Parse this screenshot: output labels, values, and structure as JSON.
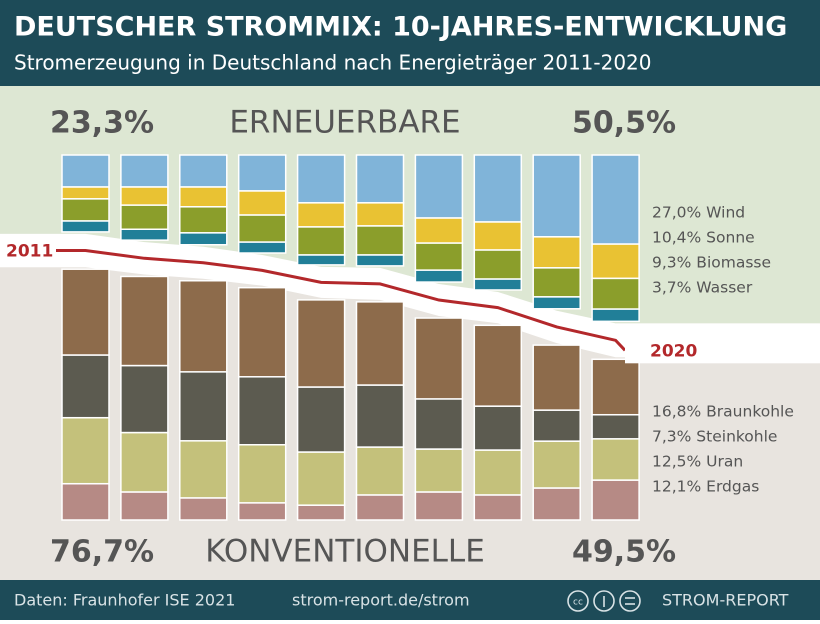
{
  "chart_data": {
    "type": "split_stack",
    "title": "DEUTSCHER STROMMIX: 10-JAHRES-ENTWICKLUNG",
    "subtitle": "Stromerzeugung in Deutschland nach Energieträger 2011-2020",
    "categories": [
      "2011",
      null,
      null,
      null,
      null,
      null,
      null,
      null,
      null,
      "2020"
    ],
    "groups": [
      {
        "name": "ERNEUERBARE",
        "values": [
          23.3,
          50.5
        ],
        "value_labels": [
          "23,3%",
          "50,5%"
        ]
      },
      {
        "name": "KONVENTIONELLE",
        "values": [
          76.7,
          49.5
        ],
        "value_labels": [
          "76,7%",
          "49,5%"
        ]
      }
    ],
    "series": [
      {
        "name": "27,0% Wind",
        "group": 0,
        "color": "#80b4d9",
        "values": [
          9.7,
          9.7,
          9.7,
          10.9,
          14.5,
          14.5,
          19.1,
          20.3,
          24.8,
          27.0
        ]
      },
      {
        "name": "10,4% Sonne",
        "group": 0,
        "color": "#e9c233",
        "values": [
          3.6,
          5.5,
          6.0,
          7.3,
          7.3,
          7.0,
          7.6,
          8.5,
          9.4,
          10.4
        ]
      },
      {
        "name": "9,3% Biomasse",
        "group": 0,
        "color": "#8b9e2b",
        "values": [
          6.7,
          7.3,
          7.9,
          8.2,
          8.5,
          8.8,
          8.2,
          8.8,
          8.8,
          9.3
        ]
      },
      {
        "name": "3,7% Wasser",
        "group": 0,
        "color": "#217f98",
        "values": [
          3.3,
          3.3,
          3.6,
          3.3,
          3.0,
          3.3,
          3.6,
          3.3,
          3.6,
          3.7
        ]
      },
      {
        "name": "16,8% Braunkohle",
        "group": 1,
        "color": "#8d6b4b",
        "values": [
          26.0,
          27.0,
          27.6,
          27.0,
          26.4,
          25.2,
          24.5,
          24.5,
          19.7,
          16.8
        ]
      },
      {
        "name": "7,3% Steinkohle",
        "group": 1,
        "color": "#5c5b50",
        "values": [
          19.0,
          20.3,
          20.9,
          20.6,
          19.7,
          18.8,
          15.2,
          13.3,
          9.4,
          7.3
        ]
      },
      {
        "name": "12,5% Uran",
        "group": 1,
        "color": "#c4c17b",
        "values": [
          20.0,
          18.0,
          17.3,
          17.6,
          16.1,
          14.5,
          13.0,
          13.6,
          14.2,
          12.5
        ]
      },
      {
        "name": "12,1% Erdgas",
        "group": 1,
        "color": "#b68a85",
        "values": [
          11.0,
          8.5,
          6.7,
          5.2,
          4.5,
          7.6,
          8.5,
          7.6,
          9.7,
          12.1
        ]
      }
    ]
  },
  "footer": {
    "source": "Daten: Fraunhofer ISE 2021",
    "url": "strom-report.de/strom",
    "brand": "STROM-REPORT"
  }
}
